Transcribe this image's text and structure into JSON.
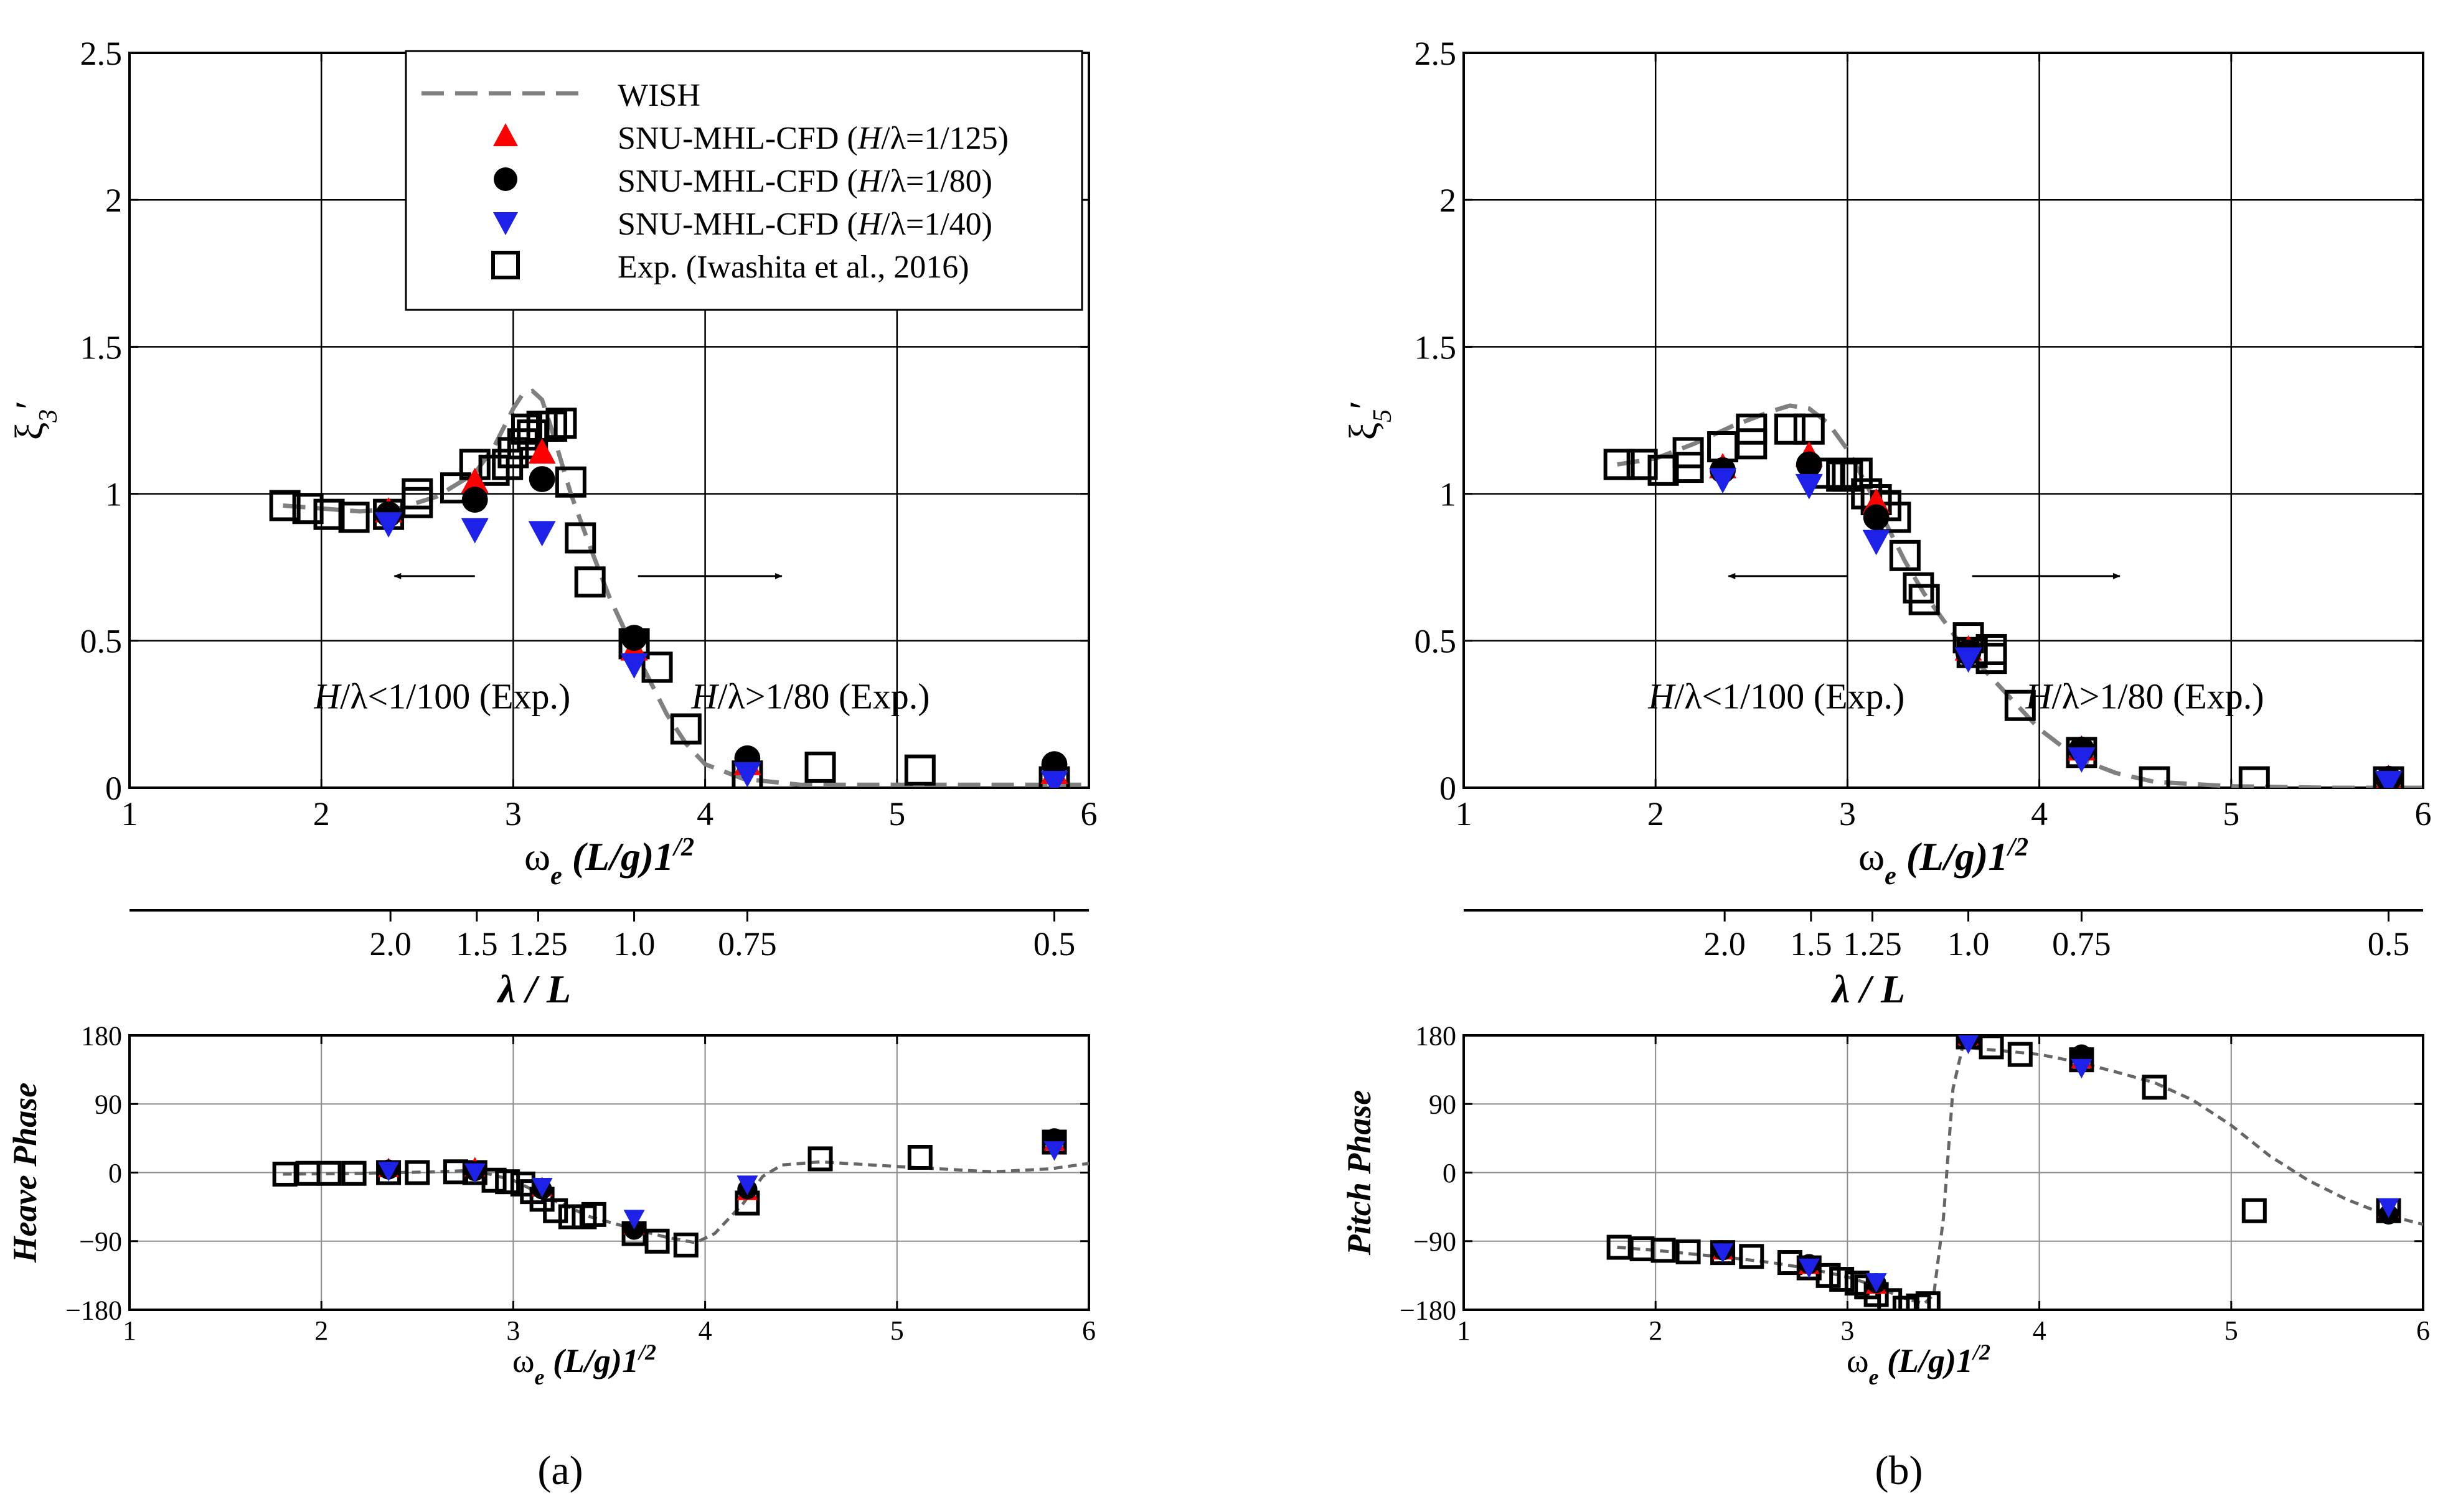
{
  "figure": {
    "panel_labels": [
      "(a)",
      "(b)"
    ],
    "legend": {
      "entries": [
        {
          "label": "WISH",
          "marker": "dash-line",
          "color": "#808080"
        },
        {
          "label": "SNU-MHL-CFD (H/λ=1/125)",
          "marker": "triangle-up",
          "color": "#ff0000"
        },
        {
          "label": "SNU-MHL-CFD (H/λ=1/80)",
          "marker": "circle",
          "color": "#000000"
        },
        {
          "label": "SNU-MHL-CFD (H/λ=1/40)",
          "marker": "triangle-down",
          "color": "#1e22e8"
        },
        {
          "label": "Exp. (Iwashita et al., 2016)",
          "marker": "square-open",
          "color": "#000000"
        }
      ]
    },
    "annotations": {
      "left_text": "H/λ<1/100 (Exp.)",
      "right_text": "H/λ>1/80 (Exp.)"
    },
    "lambda_axis": {
      "label": "λ / L",
      "ticks": [
        {
          "label": "2.0",
          "omega": 2.36
        },
        {
          "label": "1.5",
          "omega": 2.81
        },
        {
          "label": "1.25",
          "omega": 3.13
        },
        {
          "label": "1.0",
          "omega": 3.63
        },
        {
          "label": "0.75",
          "omega": 4.22
        },
        {
          "label": "0.5",
          "omega": 5.82
        }
      ]
    }
  },
  "chart_data": [
    {
      "id": "heave-amplitude",
      "panel": "a",
      "type": "scatter",
      "title": "",
      "xlabel": "ωe (L/g)1/2",
      "ylabel": "ξ3′",
      "xlim": [
        1,
        6
      ],
      "ylim": [
        0,
        2.5
      ],
      "xticks": [
        1,
        2,
        3,
        4,
        5,
        6
      ],
      "yticks": [
        0,
        0.5,
        1,
        1.5,
        2,
        2.5
      ],
      "ytick_labels": [
        "0",
        "0.5",
        "1",
        "1.5",
        "2",
        "2.5"
      ],
      "grid": true,
      "legend_position": "top-right",
      "series": [
        {
          "name": "WISH",
          "style": "dash-line",
          "x": [
            1.8,
            2.0,
            2.2,
            2.4,
            2.6,
            2.8,
            2.9,
            3.0,
            3.05,
            3.1,
            3.15,
            3.2,
            3.3,
            3.4,
            3.5,
            3.6,
            3.7,
            3.8,
            3.9,
            4.0,
            4.2,
            4.5,
            5.0,
            5.5,
            5.8,
            6.0
          ],
          "y": [
            0.96,
            0.95,
            0.94,
            0.95,
            0.99,
            1.07,
            1.16,
            1.29,
            1.34,
            1.35,
            1.32,
            1.22,
            1.0,
            0.82,
            0.65,
            0.51,
            0.38,
            0.25,
            0.15,
            0.08,
            0.03,
            0.01,
            0.01,
            0.01,
            0.01,
            0.01
          ]
        },
        {
          "name": "SNU-MHL-CFD (H/λ=1/125)",
          "style": "triangle-up",
          "x": [
            2.35,
            2.8,
            3.15,
            3.63,
            4.22,
            5.82
          ],
          "y": [
            0.94,
            1.04,
            1.14,
            0.47,
            0.08,
            0.05
          ]
        },
        {
          "name": "SNU-MHL-CFD (H/λ=1/80)",
          "style": "circle",
          "x": [
            2.35,
            2.8,
            3.15,
            3.63,
            4.22,
            5.82
          ],
          "y": [
            0.93,
            0.98,
            1.05,
            0.51,
            0.1,
            0.08
          ]
        },
        {
          "name": "SNU-MHL-CFD (H/λ=1/40)",
          "style": "triangle-down",
          "x": [
            2.35,
            2.8,
            3.15,
            3.63,
            4.22,
            5.82
          ],
          "y": [
            0.9,
            0.88,
            0.87,
            0.42,
            0.05,
            0.02
          ]
        },
        {
          "name": "Exp. (Iwashita et al., 2016)",
          "style": "square-open",
          "x": [
            1.81,
            1.93,
            2.04,
            2.17,
            2.35,
            2.5,
            2.5,
            2.7,
            2.8,
            2.9,
            2.97,
            3.0,
            3.05,
            3.07,
            3.1,
            3.15,
            3.2,
            3.25,
            3.3,
            3.35,
            3.4,
            3.63,
            3.75,
            3.9,
            4.22,
            4.6,
            5.12,
            5.82
          ],
          "y": [
            0.96,
            0.95,
            0.93,
            0.92,
            0.93,
            0.97,
            1.0,
            1.02,
            1.1,
            1.08,
            1.1,
            1.14,
            1.17,
            1.22,
            1.2,
            1.23,
            1.23,
            1.24,
            1.04,
            0.85,
            0.7,
            0.49,
            0.41,
            0.2,
            0.04,
            0.07,
            0.06,
            0.02
          ]
        }
      ]
    },
    {
      "id": "heave-phase",
      "panel": "a",
      "type": "scatter",
      "title": "",
      "xlabel": "ωe (L/g)1/2",
      "ylabel": "Heave Phase",
      "xlim": [
        1,
        6
      ],
      "ylim": [
        -180,
        180
      ],
      "xticks": [
        1,
        2,
        3,
        4,
        5,
        6
      ],
      "yticks": [
        -180,
        -90,
        0,
        90,
        180
      ],
      "ytick_labels": [
        "−180",
        "−90",
        "0",
        "90",
        "180"
      ],
      "grid": true,
      "series": [
        {
          "name": "WISH",
          "style": "dash-line",
          "x": [
            1.8,
            2.2,
            2.6,
            2.8,
            3.0,
            3.2,
            3.4,
            3.6,
            3.8,
            3.95,
            4.05,
            4.2,
            4.3,
            4.4,
            4.6,
            5.0,
            5.5,
            5.8,
            6.0
          ],
          "y": [
            -2,
            -1,
            1,
            3,
            -10,
            -35,
            -58,
            -72,
            -85,
            -92,
            -80,
            -40,
            -5,
            10,
            14,
            8,
            1,
            5,
            12
          ]
        },
        {
          "name": "SNU-MHL-CFD (H/λ=1/125)",
          "style": "triangle-up",
          "x": [
            2.35,
            2.8,
            3.15,
            3.63,
            4.22,
            5.82
          ],
          "y": [
            5,
            6,
            -20,
            -70,
            -25,
            40
          ]
        },
        {
          "name": "SNU-MHL-CFD (H/λ=1/80)",
          "style": "circle",
          "x": [
            2.35,
            2.8,
            3.15,
            3.63,
            4.22,
            5.82
          ],
          "y": [
            4,
            2,
            -22,
            -75,
            -22,
            45
          ]
        },
        {
          "name": "SNU-MHL-CFD (H/λ=1/40)",
          "style": "triangle-down",
          "x": [
            2.35,
            2.8,
            3.15,
            3.63,
            4.22,
            5.82
          ],
          "y": [
            3,
            1,
            -18,
            -60,
            -15,
            30
          ]
        },
        {
          "name": "Exp. (Iwashita et al., 2016)",
          "style": "square-open",
          "x": [
            1.81,
            1.93,
            2.04,
            2.17,
            2.35,
            2.5,
            2.7,
            2.8,
            2.9,
            2.97,
            3.05,
            3.1,
            3.15,
            3.22,
            3.3,
            3.37,
            3.42,
            3.63,
            3.75,
            3.9,
            4.22,
            4.6,
            5.12,
            5.82
          ],
          "y": [
            -2,
            -1,
            -1,
            -1,
            0,
            0,
            1,
            0,
            -10,
            -12,
            -15,
            -25,
            -35,
            -50,
            -58,
            -58,
            -55,
            -80,
            -90,
            -95,
            -40,
            18,
            20,
            40
          ]
        }
      ]
    },
    {
      "id": "pitch-amplitude",
      "panel": "b",
      "type": "scatter",
      "title": "",
      "xlabel": "ωe (L/g)1/2",
      "ylabel": "ξ5′",
      "xlim": [
        1,
        6
      ],
      "ylim": [
        0,
        2.5
      ],
      "xticks": [
        1,
        2,
        3,
        4,
        5,
        6
      ],
      "yticks": [
        0,
        0.5,
        1,
        1.5,
        2,
        2.5
      ],
      "ytick_labels": [
        "0",
        "0.5",
        "1",
        "1.5",
        "2",
        "2.5"
      ],
      "grid": true,
      "series": [
        {
          "name": "WISH",
          "style": "dash-line",
          "x": [
            1.8,
            2.0,
            2.2,
            2.4,
            2.6,
            2.7,
            2.8,
            2.9,
            3.0,
            3.1,
            3.2,
            3.3,
            3.4,
            3.5,
            3.6,
            3.7,
            3.8,
            3.9,
            4.0,
            4.2,
            4.4,
            4.6,
            5.0,
            5.5,
            6.0
          ],
          "y": [
            1.1,
            1.12,
            1.17,
            1.23,
            1.28,
            1.3,
            1.29,
            1.24,
            1.15,
            1.03,
            0.9,
            0.77,
            0.66,
            0.57,
            0.48,
            0.41,
            0.34,
            0.27,
            0.2,
            0.1,
            0.05,
            0.02,
            0.005,
            0.0,
            0.0
          ]
        },
        {
          "name": "SNU-MHL-CFD (H/λ=1/125)",
          "style": "triangle-up",
          "x": [
            2.35,
            2.8,
            3.15,
            3.63,
            4.22,
            5.82
          ],
          "y": [
            1.09,
            1.13,
            0.97,
            0.47,
            0.13,
            0.03
          ]
        },
        {
          "name": "SNU-MHL-CFD (H/λ=1/80)",
          "style": "circle",
          "x": [
            2.35,
            2.8,
            3.15,
            3.63,
            4.22,
            5.82
          ],
          "y": [
            1.08,
            1.1,
            0.92,
            0.46,
            0.13,
            0.03
          ]
        },
        {
          "name": "SNU-MHL-CFD (H/λ=1/40)",
          "style": "triangle-down",
          "x": [
            2.35,
            2.8,
            3.15,
            3.63,
            4.22,
            5.82
          ],
          "y": [
            1.05,
            1.03,
            0.84,
            0.44,
            0.1,
            0.02
          ]
        },
        {
          "name": "Exp. (Iwashita et al., 2016)",
          "style": "square-open",
          "x": [
            1.81,
            1.93,
            2.04,
            2.17,
            2.17,
            2.35,
            2.5,
            2.5,
            2.7,
            2.8,
            2.9,
            2.97,
            3.0,
            3.05,
            3.1,
            3.15,
            3.2,
            3.25,
            3.3,
            3.37,
            3.4,
            3.63,
            3.65,
            3.75,
            3.75,
            3.9,
            4.22,
            4.6,
            5.12,
            5.82
          ],
          "y": [
            1.1,
            1.1,
            1.08,
            1.09,
            1.14,
            1.16,
            1.17,
            1.22,
            1.22,
            1.22,
            1.07,
            1.06,
            1.06,
            1.07,
            1.0,
            0.98,
            0.96,
            0.92,
            0.79,
            0.68,
            0.64,
            0.51,
            0.46,
            0.47,
            0.44,
            0.28,
            0.12,
            0.02,
            0.02,
            0.02
          ]
        }
      ]
    },
    {
      "id": "pitch-phase",
      "panel": "b",
      "type": "scatter",
      "title": "",
      "xlabel": "ωe (L/g)1/2",
      "ylabel": "Pitch Phase",
      "xlim": [
        1,
        6
      ],
      "ylim": [
        -180,
        180
      ],
      "xticks": [
        1,
        2,
        3,
        4,
        5,
        6
      ],
      "yticks": [
        -180,
        -90,
        0,
        90,
        180
      ],
      "ytick_labels": [
        "−180",
        "−90",
        "0",
        "90",
        "180"
      ],
      "grid": true,
      "series": [
        {
          "name": "WISH",
          "style": "dash-line",
          "x": [
            1.8,
            2.0,
            2.2,
            2.4,
            2.6,
            2.8,
            3.0,
            3.1,
            3.2,
            3.3,
            3.4,
            3.45,
            3.5,
            3.55,
            3.6,
            3.7,
            3.8,
            4.0,
            4.2,
            4.4,
            4.6,
            4.8,
            5.0,
            5.2,
            5.4,
            5.6,
            5.8,
            6.0
          ],
          "y": [
            -98,
            -102,
            -107,
            -112,
            -118,
            -126,
            -137,
            -145,
            -155,
            -165,
            -172,
            -160,
            -60,
            110,
            165,
            162,
            160,
            155,
            145,
            132,
            118,
            95,
            62,
            22,
            -10,
            -35,
            -55,
            -68
          ]
        },
        {
          "name": "SNU-MHL-CFD (H/λ=1/125)",
          "style": "triangle-up",
          "x": [
            2.35,
            2.8,
            3.15,
            3.63,
            4.22,
            5.82
          ],
          "y": [
            -103,
            -122,
            -148,
            178,
            148,
            -48
          ]
        },
        {
          "name": "SNU-MHL-CFD (H/λ=1/80)",
          "style": "circle",
          "x": [
            2.35,
            2.8,
            3.15,
            3.63,
            4.22,
            5.82
          ],
          "y": [
            -102,
            -120,
            -145,
            175,
            155,
            -55
          ]
        },
        {
          "name": "SNU-MHL-CFD (H/λ=1/40)",
          "style": "triangle-down",
          "x": [
            2.35,
            2.8,
            3.15,
            3.63,
            4.22,
            5.82
          ],
          "y": [
            -104,
            -124,
            -143,
            170,
            138,
            -45
          ]
        },
        {
          "name": "Exp. (Iwashita et al., 2016)",
          "style": "square-open",
          "x": [
            1.81,
            1.93,
            2.04,
            2.17,
            2.35,
            2.5,
            2.7,
            2.8,
            2.9,
            2.97,
            3.05,
            3.1,
            3.15,
            3.22,
            3.3,
            3.37,
            3.42,
            3.63,
            3.75,
            3.9,
            4.22,
            4.6,
            5.12,
            5.82
          ],
          "y": [
            -98,
            -100,
            -102,
            -104,
            -105,
            -110,
            -118,
            -125,
            -135,
            -140,
            -145,
            -150,
            -160,
            -168,
            -178,
            -175,
            -172,
            178,
            165,
            155,
            148,
            112,
            -50,
            -50
          ]
        }
      ]
    }
  ]
}
